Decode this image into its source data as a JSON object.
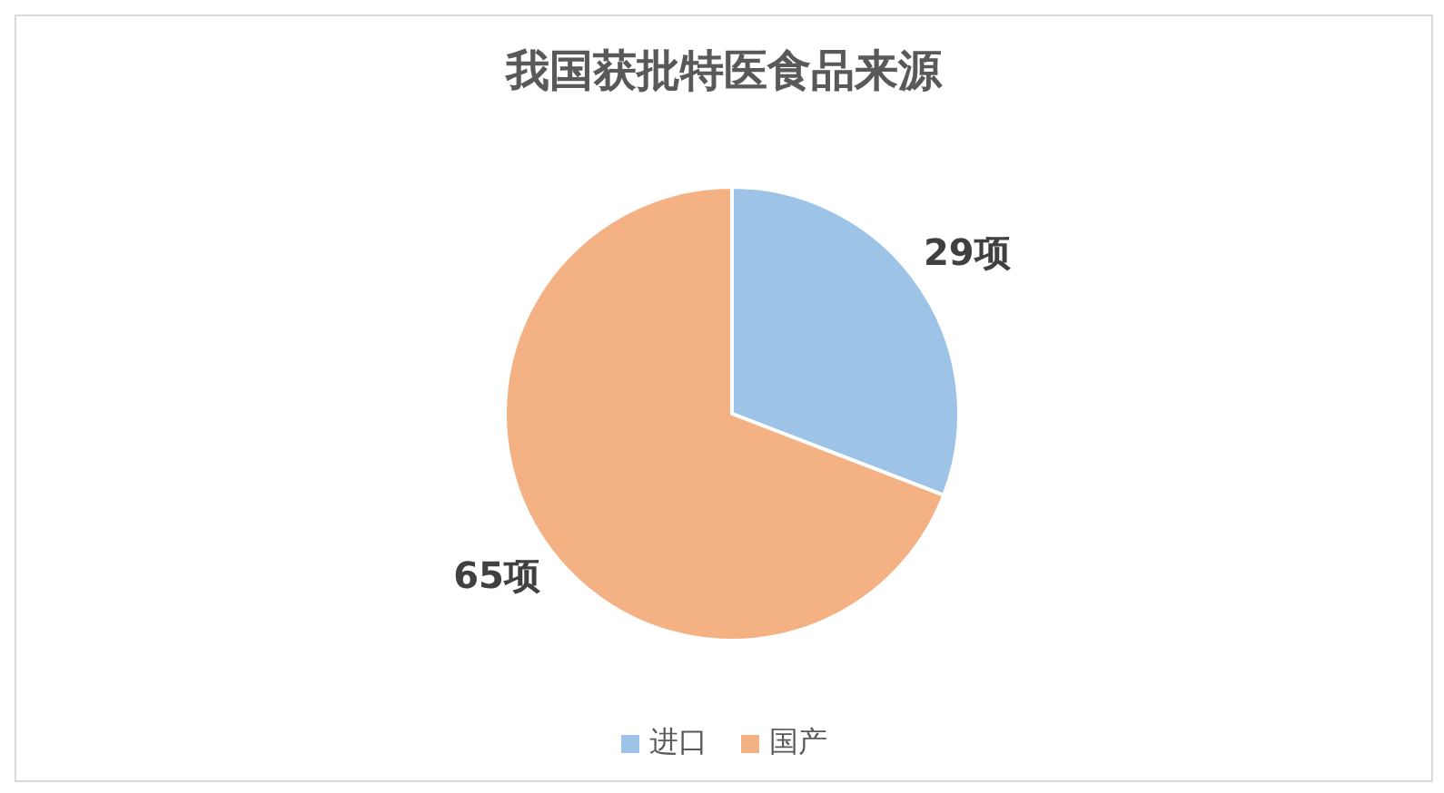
{
  "chart_data": {
    "type": "pie",
    "title": "我国获批特医食品来源",
    "categories": [
      "进口",
      "国产"
    ],
    "values": [
      29,
      65
    ],
    "colors": [
      "#9dc3e6",
      "#f4b183"
    ],
    "value_labels": [
      "29项",
      "65项"
    ],
    "legend": "bottom"
  }
}
